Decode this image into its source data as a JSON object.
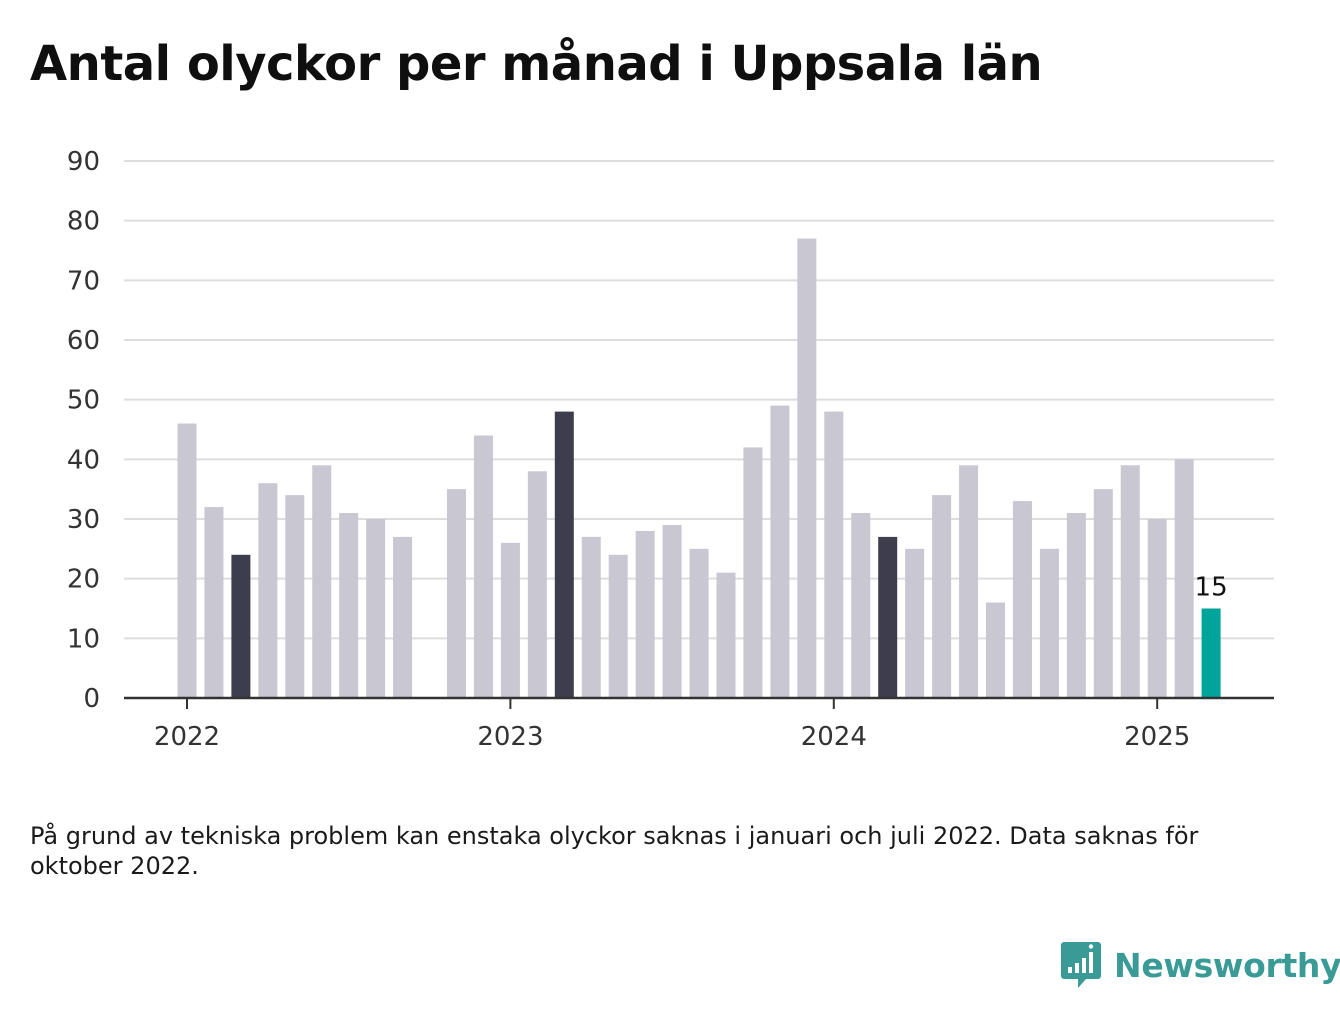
{
  "title": "Antal olyckor per månad i Uppsala län",
  "note": "På grund av tekniska problem kan enstaka olyckor saknas i januari och juli 2022. Data saknas för oktober 2022.",
  "brand": {
    "name": "Newsworthy",
    "icon": "newsworthy-logo-icon",
    "color": "#3a9a96"
  },
  "colors": {
    "default": "#c8c7d2",
    "highlight": "#3e3d4e",
    "latest": "#00a49a",
    "grid": "#dddddd",
    "axis": "#333333"
  },
  "chart_data": {
    "type": "bar",
    "title": "Antal olyckor per månad i Uppsala län",
    "xlabel": "",
    "ylabel": "",
    "ylim": [
      0,
      90
    ],
    "yticks": [
      0,
      10,
      20,
      30,
      40,
      50,
      60,
      70,
      80,
      90
    ],
    "grid": true,
    "xticks": [
      {
        "label": "2022",
        "month": "2022-01"
      },
      {
        "label": "2023",
        "month": "2023-01"
      },
      {
        "label": "2024",
        "month": "2024-01"
      },
      {
        "label": "2025",
        "month": "2025-01"
      }
    ],
    "categories": [
      "2022-01",
      "2022-02",
      "2022-03",
      "2022-04",
      "2022-05",
      "2022-06",
      "2022-07",
      "2022-08",
      "2022-09",
      "2022-10",
      "2022-11",
      "2022-12",
      "2023-01",
      "2023-02",
      "2023-03",
      "2023-04",
      "2023-05",
      "2023-06",
      "2023-07",
      "2023-08",
      "2023-09",
      "2023-10",
      "2023-11",
      "2023-12",
      "2024-01",
      "2024-02",
      "2024-03",
      "2024-04",
      "2024-05",
      "2024-06",
      "2024-07",
      "2024-08",
      "2024-09",
      "2024-10",
      "2024-11",
      "2024-12",
      "2025-01",
      "2025-02",
      "2025-03"
    ],
    "values": [
      46,
      32,
      24,
      36,
      34,
      39,
      31,
      30,
      27,
      null,
      35,
      44,
      26,
      38,
      48,
      27,
      24,
      28,
      29,
      25,
      21,
      42,
      49,
      77,
      48,
      31,
      27,
      25,
      34,
      39,
      16,
      33,
      25,
      31,
      35,
      39,
      30,
      40,
      15
    ],
    "highlight_months": [
      "2022-03",
      "2023-03",
      "2024-03"
    ],
    "latest_month": "2025-03",
    "data_labels": [
      {
        "month": "2025-03",
        "value": 15,
        "text": "15"
      }
    ]
  }
}
